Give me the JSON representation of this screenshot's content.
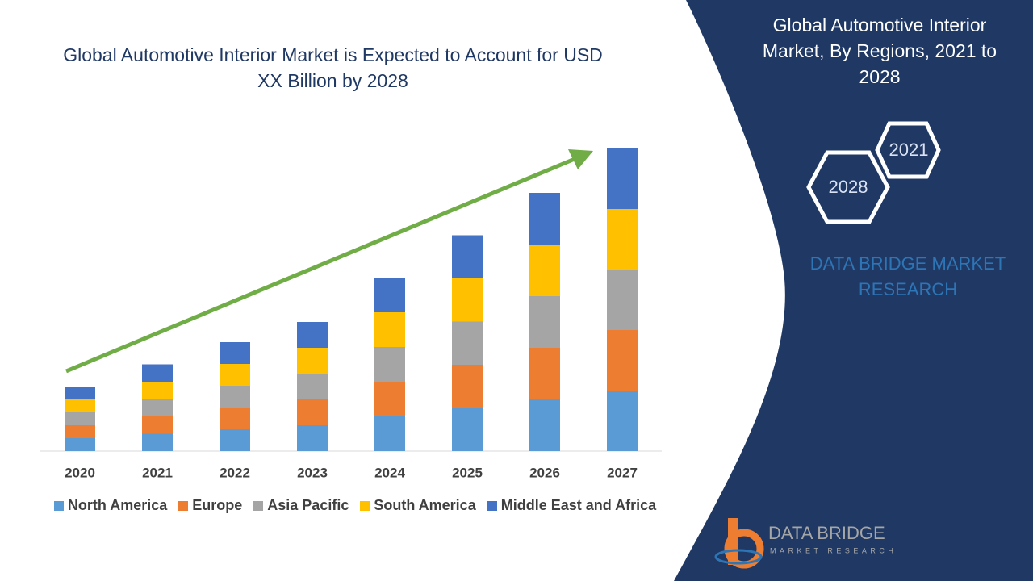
{
  "chart_data": {
    "type": "bar",
    "stacked": true,
    "title": "Global Automotive Interior Market is Expected to Account for USD XX Billion by 2028",
    "categories": [
      "2020",
      "2021",
      "2022",
      "2023",
      "2024",
      "2025",
      "2026",
      "2027"
    ],
    "series": [
      {
        "name": "North America",
        "color": "#5b9bd5",
        "values": [
          3.2,
          4.3,
          5.4,
          6.4,
          8.6,
          10.7,
          12.8,
          15
        ]
      },
      {
        "name": "Europe",
        "color": "#ed7d31",
        "values": [
          3.2,
          4.3,
          5.4,
          6.4,
          8.6,
          10.7,
          12.8,
          15
        ]
      },
      {
        "name": "Asia Pacific",
        "color": "#a5a5a5",
        "values": [
          3.2,
          4.3,
          5.4,
          6.4,
          8.6,
          10.7,
          12.8,
          15
        ]
      },
      {
        "name": "South America",
        "color": "#ffc000",
        "values": [
          3.2,
          4.3,
          5.4,
          6.4,
          8.6,
          10.7,
          12.8,
          15
        ]
      },
      {
        "name": "Middle East and Africa",
        "color": "#4472c4",
        "values": [
          3.2,
          4.3,
          5.4,
          6.4,
          8.6,
          10.7,
          12.8,
          15
        ]
      }
    ],
    "legend": "bottom"
  },
  "sidebar": {
    "title": "Global Automotive Interior Market, By Regions, 2021 to 2028",
    "hexagons": [
      "2021",
      "2028"
    ],
    "brand": "DATA BRIDGE MARKET RESEARCH",
    "logo": {
      "name": "DATA BRIDGE",
      "tagline": "MARKET RESEARCH"
    }
  }
}
